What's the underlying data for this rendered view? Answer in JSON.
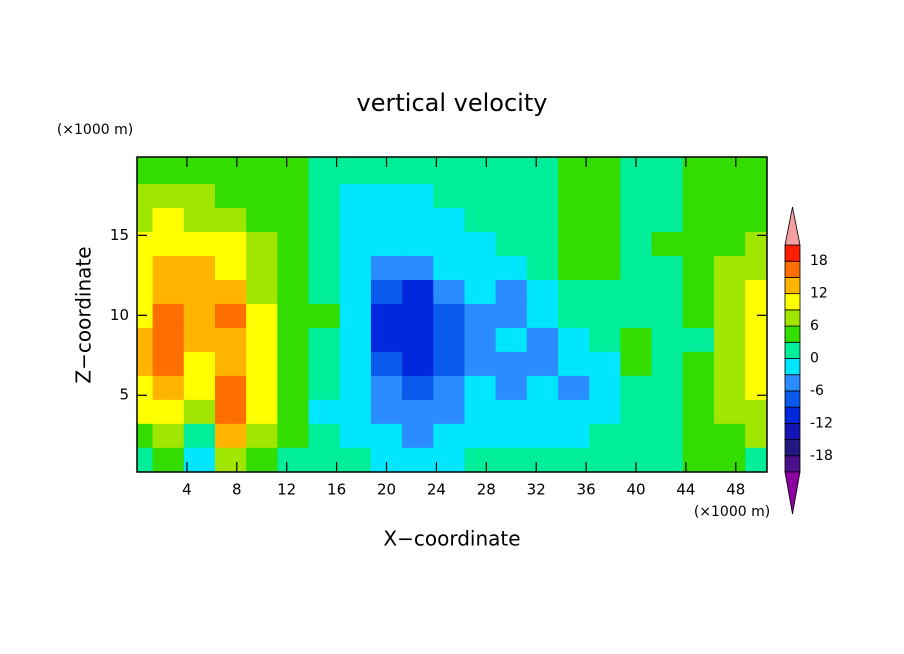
{
  "chart_data": {
    "type": "contour",
    "title": "vertical velocity",
    "x_label": "X−coordinate",
    "y_label": "Z−coordinate",
    "x_units": "(×1000 m)",
    "y_units": "(×1000 m)",
    "xlim": [
      0,
      50.5
    ],
    "ylim": [
      0.2,
      19.9
    ],
    "xticks": [
      4,
      8,
      12,
      16,
      20,
      24,
      28,
      32,
      36,
      40,
      44,
      48
    ],
    "yticks": [
      5,
      10,
      15
    ],
    "x": [
      0,
      2.5,
      5,
      7.5,
      10,
      12.5,
      15,
      17.5,
      20,
      22.5,
      25,
      27.5,
      30,
      32.5,
      35,
      37.5,
      40,
      42.5,
      45,
      47.5,
      50
    ],
    "y": [
      1,
      2.5,
      4,
      5.5,
      7,
      8.5,
      10,
      11.5,
      13,
      14.5,
      16,
      17.5,
      19
    ],
    "z": [
      [
        1,
        4,
        -1,
        7,
        4,
        1,
        1,
        1,
        -1,
        -1,
        -1,
        1,
        1,
        1,
        1,
        1,
        1,
        1,
        4,
        4,
        1
      ],
      [
        4,
        7,
        1,
        13,
        7,
        4,
        1,
        -1,
        -1,
        -4,
        -1,
        -1,
        -1,
        -1,
        -1,
        1,
        1,
        1,
        4,
        4,
        7
      ],
      [
        10,
        10,
        7,
        16,
        10,
        4,
        -1,
        -1,
        -4,
        -4,
        -4,
        -1,
        -1,
        -1,
        -1,
        -1,
        1,
        1,
        4,
        7,
        7
      ],
      [
        10,
        13,
        10,
        16,
        10,
        4,
        1,
        -1,
        -4,
        -7,
        -4,
        -1,
        -4,
        -1,
        -4,
        -1,
        1,
        1,
        4,
        7,
        10
      ],
      [
        13,
        16,
        10,
        13,
        10,
        4,
        1,
        -1,
        -7,
        -10,
        -7,
        -4,
        -4,
        -4,
        -1,
        -1,
        4,
        1,
        4,
        7,
        10
      ],
      [
        13,
        16,
        13,
        13,
        10,
        4,
        1,
        -1,
        -10,
        -10,
        -7,
        -4,
        -1,
        -4,
        -1,
        1,
        4,
        1,
        1,
        7,
        10
      ],
      [
        10,
        16,
        13,
        16,
        10,
        4,
        4,
        -1,
        -10,
        -10,
        -7,
        -4,
        -4,
        -1,
        1,
        1,
        1,
        1,
        4,
        7,
        10
      ],
      [
        10,
        13,
        13,
        13,
        7,
        4,
        1,
        -1,
        -7,
        -10,
        -4,
        -1,
        -4,
        -1,
        1,
        1,
        1,
        1,
        4,
        7,
        10
      ],
      [
        10,
        13,
        13,
        10,
        7,
        4,
        1,
        -1,
        -4,
        -4,
        -1,
        -1,
        -1,
        1,
        4,
        4,
        1,
        1,
        4,
        7,
        7
      ],
      [
        10,
        10,
        10,
        10,
        7,
        4,
        1,
        -1,
        -1,
        -1,
        -1,
        -1,
        1,
        1,
        4,
        4,
        1,
        4,
        4,
        4,
        7
      ],
      [
        7,
        10,
        7,
        7,
        4,
        4,
        1,
        -1,
        -1,
        -1,
        -1,
        1,
        1,
        1,
        4,
        4,
        1,
        1,
        4,
        4,
        4
      ],
      [
        7,
        7,
        7,
        4,
        4,
        4,
        1,
        -1,
        -1,
        -1,
        1,
        1,
        1,
        1,
        4,
        4,
        1,
        1,
        4,
        4,
        4
      ],
      [
        4,
        4,
        4,
        4,
        4,
        4,
        1,
        1,
        1,
        1,
        1,
        1,
        1,
        1,
        4,
        4,
        1,
        1,
        4,
        4,
        4
      ]
    ],
    "levels": [
      -21,
      -18,
      -15,
      -12,
      -9,
      -6,
      -3,
      0,
      3,
      6,
      9,
      12,
      15,
      18,
      21
    ],
    "colors": [
      "#4b0f8c",
      "#23187f",
      "#1414b4",
      "#0028dc",
      "#0a5aeb",
      "#2b8cff",
      "#00e6ff",
      "#00ee99",
      "#33dd00",
      "#a0e600",
      "#ffff00",
      "#ffb400",
      "#ff6e00",
      "#ff1e00"
    ],
    "below_color": "#8c00a0",
    "above_color": "#f5a0a0",
    "colorbar_ticks": [
      -18,
      -12,
      -6,
      0,
      6,
      12,
      18
    ]
  }
}
